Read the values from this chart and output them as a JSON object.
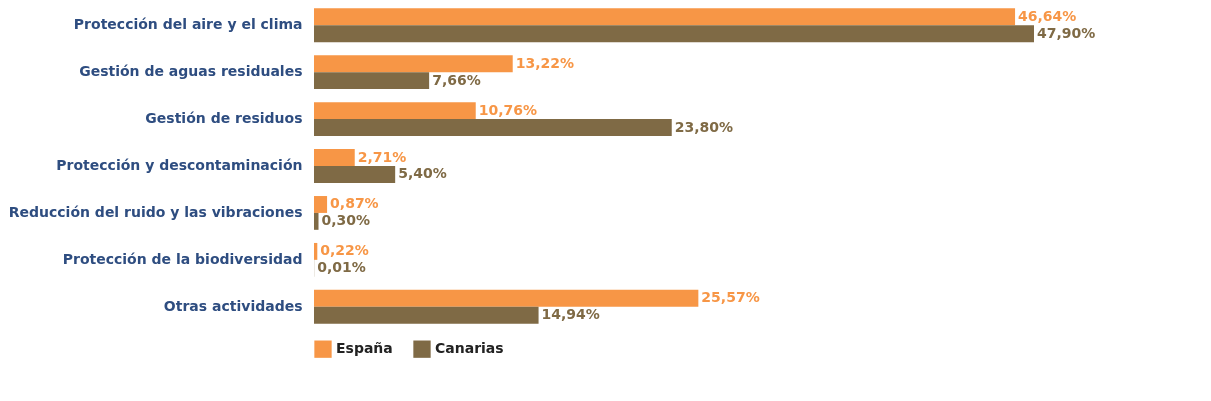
{
  "chart_data": {
    "type": "bar",
    "orientation": "horizontal",
    "categories": [
      "Protección del aire y el clima",
      "Gestión de aguas residuales",
      "Gestión de residuos",
      "Protección y descontaminación",
      "Reducción del ruido y las vibraciones",
      "Protección de la biodiversidad",
      "Otras actividades"
    ],
    "series": [
      {
        "name": "España",
        "color": "#f79646",
        "values": [
          46.64,
          13.22,
          10.76,
          2.71,
          0.87,
          0.22,
          25.57
        ],
        "value_labels": [
          "46,64%",
          "13,22%",
          "10,76%",
          "2,71%",
          "0,87%",
          "0,22%",
          "25,57%"
        ]
      },
      {
        "name": "Canarias",
        "color": "#7f6a45",
        "values": [
          47.9,
          7.66,
          23.8,
          5.4,
          0.3,
          0.01,
          14.94
        ],
        "value_labels": [
          "47,90%",
          "7,66%",
          "23,80%",
          "5,40%",
          "0,30%",
          "0,01%",
          "14,94%"
        ]
      }
    ],
    "legend": "bottom"
  }
}
